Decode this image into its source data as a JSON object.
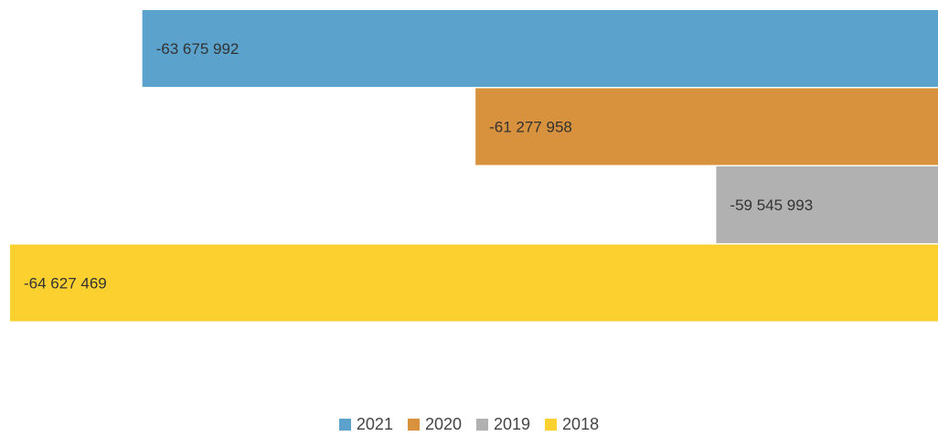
{
  "chart_data": {
    "type": "bar",
    "orientation": "horizontal",
    "categories": [
      "2021",
      "2020",
      "2019",
      "2018"
    ],
    "values": [
      -63675992,
      -61277958,
      -59545993,
      -64627469
    ],
    "data_labels": [
      "-63 675 992",
      "-61 277 958",
      "-59 545 993",
      "-64 627 469"
    ],
    "colors": [
      "#5ba3cc",
      "#d8913c",
      "#b1b1b1",
      "#fcd02f"
    ],
    "title": "",
    "xlabel": "",
    "ylabel": "",
    "xlim": [
      -64700000,
      -57950000
    ],
    "grid": false,
    "axes_visible": false,
    "legend": {
      "position": "bottom",
      "entries": [
        "2021",
        "2020",
        "2019",
        "2018"
      ]
    }
  }
}
